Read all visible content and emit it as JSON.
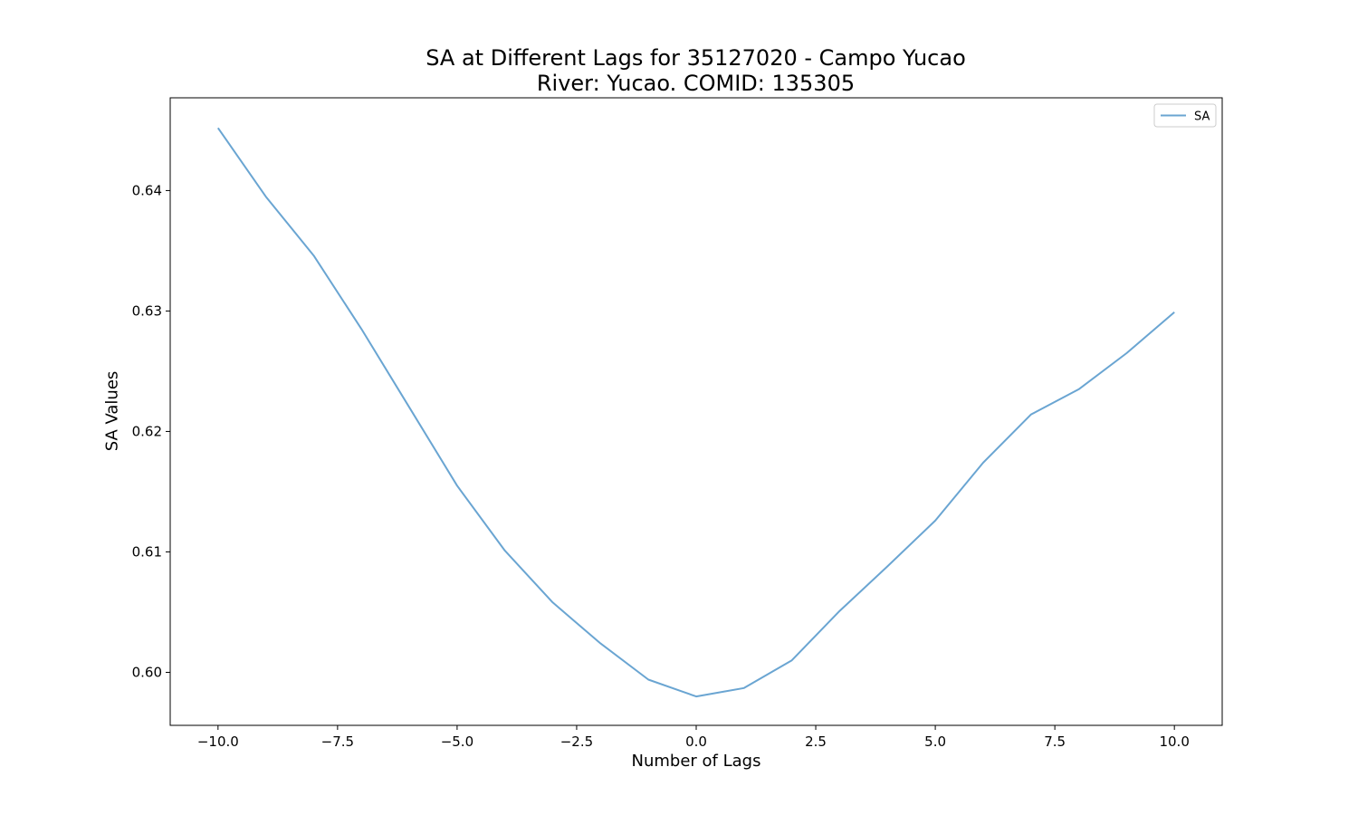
{
  "chart_data": {
    "type": "line",
    "title": "SA at Different Lags for 35127020 - Campo Yucao",
    "subtitle": "River: Yucao. COMID: 135305",
    "xlabel": "Number of Lags",
    "ylabel": "SA Values",
    "xlim": [
      -11.0,
      11.0
    ],
    "ylim": [
      0.5956,
      0.6477
    ],
    "xticks": [
      -10.0,
      -7.5,
      -5.0,
      -2.5,
      0.0,
      2.5,
      5.0,
      7.5,
      10.0
    ],
    "xtick_labels": [
      "−10.0",
      "−7.5",
      "−5.0",
      "−2.5",
      "0.0",
      "2.5",
      "5.0",
      "7.5",
      "10.0"
    ],
    "yticks": [
      0.6,
      0.61,
      0.62,
      0.63,
      0.64
    ],
    "ytick_labels": [
      "0.60",
      "0.61",
      "0.62",
      "0.63",
      "0.64"
    ],
    "grid": false,
    "legend_position": "top-right",
    "series": [
      {
        "name": "SA",
        "color": "#6aa5d2",
        "x": [
          -10,
          -9,
          -8,
          -7,
          -6,
          -5,
          -4,
          -3,
          -2,
          -1,
          0,
          1,
          2,
          3,
          4,
          5,
          6,
          7,
          8,
          9,
          10
        ],
        "values": [
          0.6452,
          0.6395,
          0.6346,
          0.6285,
          0.622,
          0.6155,
          0.6101,
          0.6058,
          0.6024,
          0.5994,
          0.598,
          0.5987,
          0.601,
          0.6051,
          0.6088,
          0.6126,
          0.6174,
          0.6214,
          0.6235,
          0.6265,
          0.6299
        ]
      }
    ]
  }
}
